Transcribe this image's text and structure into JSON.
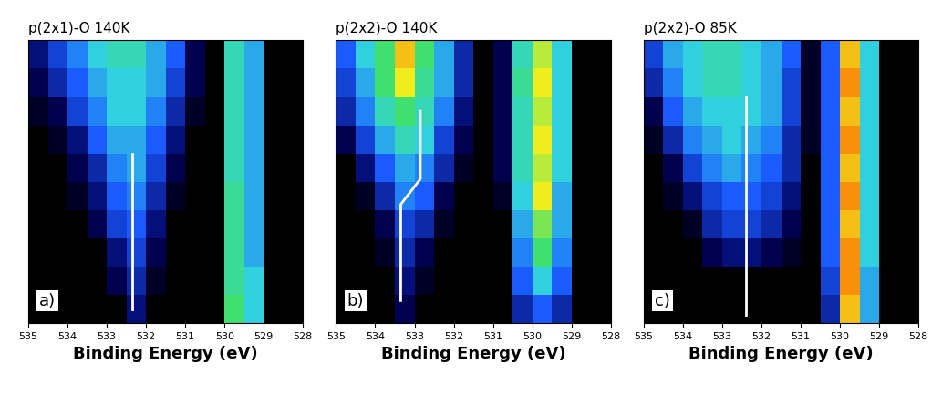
{
  "chart_data": [
    {
      "type": "heatmap",
      "title": "p(2x1)-O 140K",
      "x_label": "Binding Energy (eV)",
      "annotations": [
        "a)"
      ],
      "x_bins": [
        535,
        534.5,
        534,
        533.5,
        533,
        532.5,
        532,
        531.5,
        531,
        530.5,
        530,
        529.5,
        529,
        528.5,
        528
      ],
      "xlim": [
        535,
        528
      ],
      "xticks": [
        535,
        534,
        533,
        532,
        531,
        530,
        529,
        528
      ],
      "ylim": [
        0,
        10
      ],
      "tick_labels": "x",
      "zlim": [
        0,
        1
      ],
      "cells": [
        [
          0,
          0,
          0,
          0,
          0,
          0.15,
          0,
          0,
          0,
          0,
          0.6,
          0.45,
          0,
          0
        ],
        [
          0,
          0,
          0,
          0,
          0.1,
          0.2,
          0.05,
          0,
          0,
          0,
          0.55,
          0.45,
          0,
          0
        ],
        [
          0,
          0,
          0,
          0,
          0.15,
          0.25,
          0.1,
          0,
          0,
          0,
          0.55,
          0.4,
          0,
          0
        ],
        [
          0,
          0,
          0,
          0.1,
          0.25,
          0.3,
          0.15,
          0,
          0,
          0,
          0.55,
          0.4,
          0,
          0
        ],
        [
          0,
          0,
          0.05,
          0.15,
          0.3,
          0.35,
          0.2,
          0.05,
          0,
          0,
          0.55,
          0.4,
          0,
          0
        ],
        [
          0,
          0,
          0.1,
          0.2,
          0.35,
          0.4,
          0.25,
          0.1,
          0,
          0,
          0.5,
          0.4,
          0,
          0
        ],
        [
          0,
          0.05,
          0.15,
          0.3,
          0.4,
          0.4,
          0.3,
          0.15,
          0,
          0,
          0.5,
          0.4,
          0,
          0
        ],
        [
          0.05,
          0.1,
          0.25,
          0.35,
          0.45,
          0.45,
          0.35,
          0.2,
          0.05,
          0,
          0.5,
          0.4,
          0,
          0
        ],
        [
          0.1,
          0.2,
          0.3,
          0.4,
          0.45,
          0.45,
          0.4,
          0.25,
          0.1,
          0,
          0.5,
          0.4,
          0,
          0
        ],
        [
          0.15,
          0.25,
          0.35,
          0.45,
          0.5,
          0.5,
          0.4,
          0.3,
          0.1,
          0,
          0.5,
          0.4,
          0,
          0
        ]
      ],
      "lines": [
        {
          "x": [
            532.35,
            532.35
          ],
          "y": [
            0.5,
            6
          ],
          "color": "white"
        }
      ]
    },
    {
      "type": "heatmap",
      "title": "p(2x2)-O 140K",
      "x_label": "Binding Energy (eV)",
      "annotations": [
        "b)"
      ],
      "x_bins": [
        535,
        534.5,
        534,
        533.5,
        533,
        532.5,
        532,
        531.5,
        531,
        530.5,
        530,
        529.5,
        529,
        528.5,
        528
      ],
      "xlim": [
        535,
        528
      ],
      "xticks": [
        535,
        534,
        533,
        532,
        531,
        530,
        529,
        528
      ],
      "ylim": [
        0,
        10
      ],
      "tick_labels": "x",
      "zlim": [
        0,
        1
      ],
      "cells": [
        [
          0,
          0,
          0,
          0.1,
          0,
          0,
          0,
          0,
          0,
          0.2,
          0.3,
          0.2,
          0,
          0
        ],
        [
          0,
          0,
          0,
          0.15,
          0.05,
          0,
          0,
          0,
          0,
          0.3,
          0.45,
          0.3,
          0,
          0
        ],
        [
          0,
          0,
          0.05,
          0.2,
          0.1,
          0,
          0,
          0,
          0,
          0.35,
          0.6,
          0.35,
          0,
          0
        ],
        [
          0,
          0,
          0.1,
          0.25,
          0.2,
          0.05,
          0,
          0,
          0,
          0.4,
          0.65,
          0.4,
          0,
          0
        ],
        [
          0,
          0.05,
          0.2,
          0.35,
          0.3,
          0.1,
          0,
          0,
          0.05,
          0.45,
          0.75,
          0.4,
          0,
          0
        ],
        [
          0,
          0.15,
          0.3,
          0.4,
          0.35,
          0.2,
          0.05,
          0,
          0.1,
          0.5,
          0.7,
          0.45,
          0,
          0
        ],
        [
          0.1,
          0.25,
          0.4,
          0.5,
          0.45,
          0.25,
          0.1,
          0,
          0.1,
          0.5,
          0.75,
          0.45,
          0,
          0
        ],
        [
          0.2,
          0.35,
          0.5,
          0.6,
          0.5,
          0.35,
          0.15,
          0,
          0.1,
          0.5,
          0.7,
          0.45,
          0,
          0
        ],
        [
          0.25,
          0.4,
          0.6,
          0.75,
          0.55,
          0.4,
          0.2,
          0,
          0.1,
          0.55,
          0.75,
          0.45,
          0,
          0
        ],
        [
          0.3,
          0.45,
          0.6,
          0.8,
          0.6,
          0.4,
          0.2,
          0,
          0.1,
          0.5,
          0.7,
          0.45,
          0,
          0
        ]
      ],
      "lines": [
        {
          "x": [
            533.35,
            533.35,
            532.85,
            532.85
          ],
          "y": [
            0.8,
            4.2,
            5.1,
            7.5
          ],
          "color": "white"
        }
      ]
    },
    {
      "type": "heatmap",
      "title": "p(2x2)-O 85K",
      "x_label": "Binding Energy (eV)",
      "annotations": [
        "c)"
      ],
      "x_bins": [
        535,
        534.5,
        534,
        533.5,
        533,
        532.5,
        532,
        531.5,
        531,
        530.5,
        530,
        529.5,
        529,
        528.5,
        528
      ],
      "xlim": [
        535,
        528
      ],
      "xticks": [
        535,
        534,
        533,
        532,
        531,
        530,
        529,
        528
      ],
      "ylim": [
        0,
        10
      ],
      "tick_labels": "x",
      "zlim": [
        0,
        1
      ],
      "cells": [
        [
          0,
          0,
          0,
          0,
          0,
          0,
          0,
          0,
          0,
          0.2,
          0.8,
          0.4,
          0,
          0
        ],
        [
          0,
          0,
          0,
          0,
          0,
          0,
          0,
          0,
          0,
          0.25,
          0.85,
          0.4,
          0,
          0
        ],
        [
          0,
          0,
          0,
          0.1,
          0.15,
          0.15,
          0.1,
          0.05,
          0,
          0.3,
          0.85,
          0.45,
          0,
          0
        ],
        [
          0,
          0,
          0.05,
          0.2,
          0.25,
          0.25,
          0.2,
          0.1,
          0,
          0.3,
          0.8,
          0.45,
          0,
          0
        ],
        [
          0,
          0.05,
          0.15,
          0.25,
          0.3,
          0.3,
          0.25,
          0.15,
          0,
          0.3,
          0.85,
          0.45,
          0,
          0
        ],
        [
          0,
          0.1,
          0.25,
          0.35,
          0.4,
          0.35,
          0.3,
          0.2,
          0,
          0.3,
          0.8,
          0.45,
          0,
          0
        ],
        [
          0.05,
          0.2,
          0.35,
          0.4,
          0.45,
          0.4,
          0.35,
          0.2,
          0.05,
          0.3,
          0.85,
          0.45,
          0,
          0
        ],
        [
          0.1,
          0.3,
          0.4,
          0.45,
          0.45,
          0.45,
          0.4,
          0.25,
          0.05,
          0.3,
          0.8,
          0.45,
          0,
          0
        ],
        [
          0.2,
          0.35,
          0.45,
          0.5,
          0.5,
          0.45,
          0.4,
          0.25,
          0.05,
          0.3,
          0.85,
          0.45,
          0,
          0
        ],
        [
          0.25,
          0.4,
          0.45,
          0.5,
          0.5,
          0.45,
          0.4,
          0.3,
          0.05,
          0.3,
          0.8,
          0.45,
          0,
          0
        ]
      ],
      "lines": [
        {
          "x": [
            532.4,
            532.4
          ],
          "y": [
            0.3,
            8
          ],
          "color": "white"
        }
      ]
    }
  ]
}
